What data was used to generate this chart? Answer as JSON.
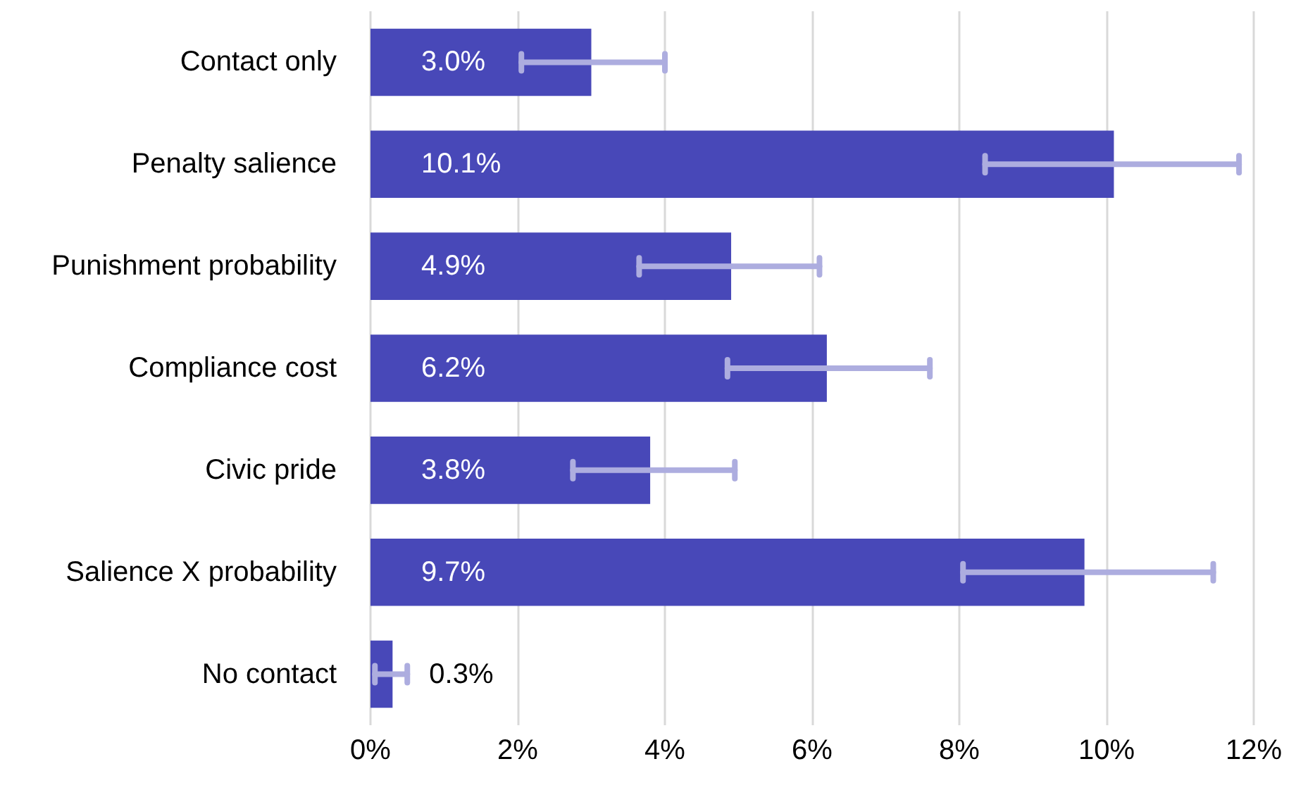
{
  "chart_data": {
    "type": "bar",
    "orientation": "horizontal",
    "categories": [
      "Contact only",
      "Penalty salience",
      "Punishment probability",
      "Compliance cost",
      "Civic pride",
      "Salience X probability",
      "No contact"
    ],
    "values": [
      3.0,
      10.1,
      4.9,
      6.2,
      3.8,
      9.7,
      0.3
    ],
    "value_labels": [
      "3.0%",
      "10.1%",
      "4.9%",
      "6.2%",
      "3.8%",
      "9.7%",
      "0.3%"
    ],
    "errors": [
      [
        2.05,
        4.0
      ],
      [
        8.35,
        11.8
      ],
      [
        3.65,
        6.1
      ],
      [
        4.85,
        7.6
      ],
      [
        2.75,
        4.95
      ],
      [
        8.05,
        11.45
      ],
      [
        0.06,
        0.5
      ]
    ],
    "color": "#4848b8",
    "xlim": [
      0,
      12
    ],
    "xticks": [
      {
        "value": 0,
        "label": "0%"
      },
      {
        "value": 2,
        "label": "2%"
      },
      {
        "value": 4,
        "label": "4%"
      },
      {
        "value": 6,
        "label": "6%"
      },
      {
        "value": 8,
        "label": "8%"
      },
      {
        "value": 10,
        "label": "10%"
      },
      {
        "value": 12,
        "label": "12%"
      }
    ],
    "grid": "x"
  }
}
